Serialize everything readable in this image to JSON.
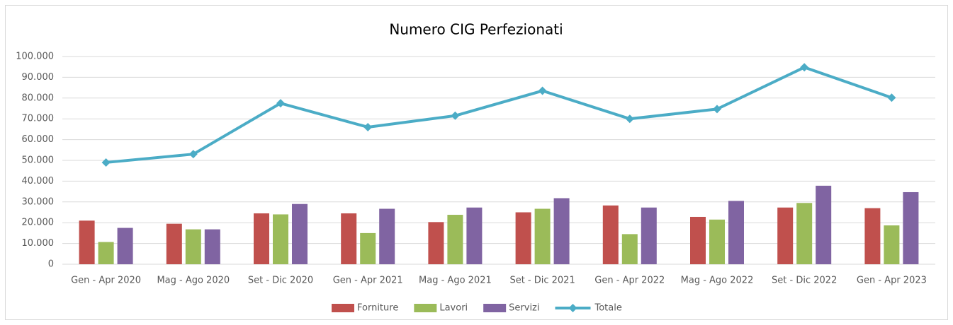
{
  "chart_data": {
    "type": "bar",
    "title": "Numero CIG Perfezionati",
    "categories": [
      "Gen - Apr 2020",
      "Mag - Ago 2020",
      "Set - Dic 2020",
      "Gen - Apr 2021",
      "Mag - Ago 2021",
      "Set - Dic 2021",
      "Gen - Apr 2022",
      "Mag - Ago 2022",
      "Set - Dic 2022",
      "Gen - Apr 2023"
    ],
    "series": [
      {
        "name": "Forniture",
        "color": "#c0504d",
        "values": [
          21000,
          19500,
          24500,
          24500,
          20300,
          25000,
          28300,
          22800,
          27300,
          27000
        ]
      },
      {
        "name": "Lavori",
        "color": "#9bbb59",
        "values": [
          10700,
          16800,
          24000,
          15000,
          23800,
          26700,
          14500,
          21500,
          29500,
          18700
        ]
      },
      {
        "name": "Servizi",
        "color": "#8064a2",
        "values": [
          17500,
          16800,
          29000,
          26700,
          27300,
          31800,
          27300,
          30500,
          37800,
          34700
        ]
      },
      {
        "name": "Totale",
        "color": "#4bacc6",
        "type": "line",
        "values": [
          49000,
          53000,
          77500,
          66000,
          71500,
          83500,
          70000,
          74700,
          94800,
          80200
        ]
      }
    ],
    "ylim": [
      0,
      100000
    ],
    "yticks": [
      0,
      {
        "value": 10000,
        "label": "10.000"
      },
      {
        "value": 20000,
        "label": "20.000"
      },
      {
        "value": 30000,
        "label": "30.000"
      },
      {
        "value": 40000,
        "label": "40.000"
      },
      {
        "value": 50000,
        "label": "50.000"
      },
      {
        "value": 60000,
        "label": "60.000"
      },
      {
        "value": 70000,
        "label": "70.000"
      },
      {
        "value": 80000,
        "label": "80.000"
      },
      {
        "value": 90000,
        "label": "90.000"
      },
      {
        "value": 100000,
        "label": "100.000"
      }
    ],
    "grid": true,
    "legend": "bottom"
  }
}
